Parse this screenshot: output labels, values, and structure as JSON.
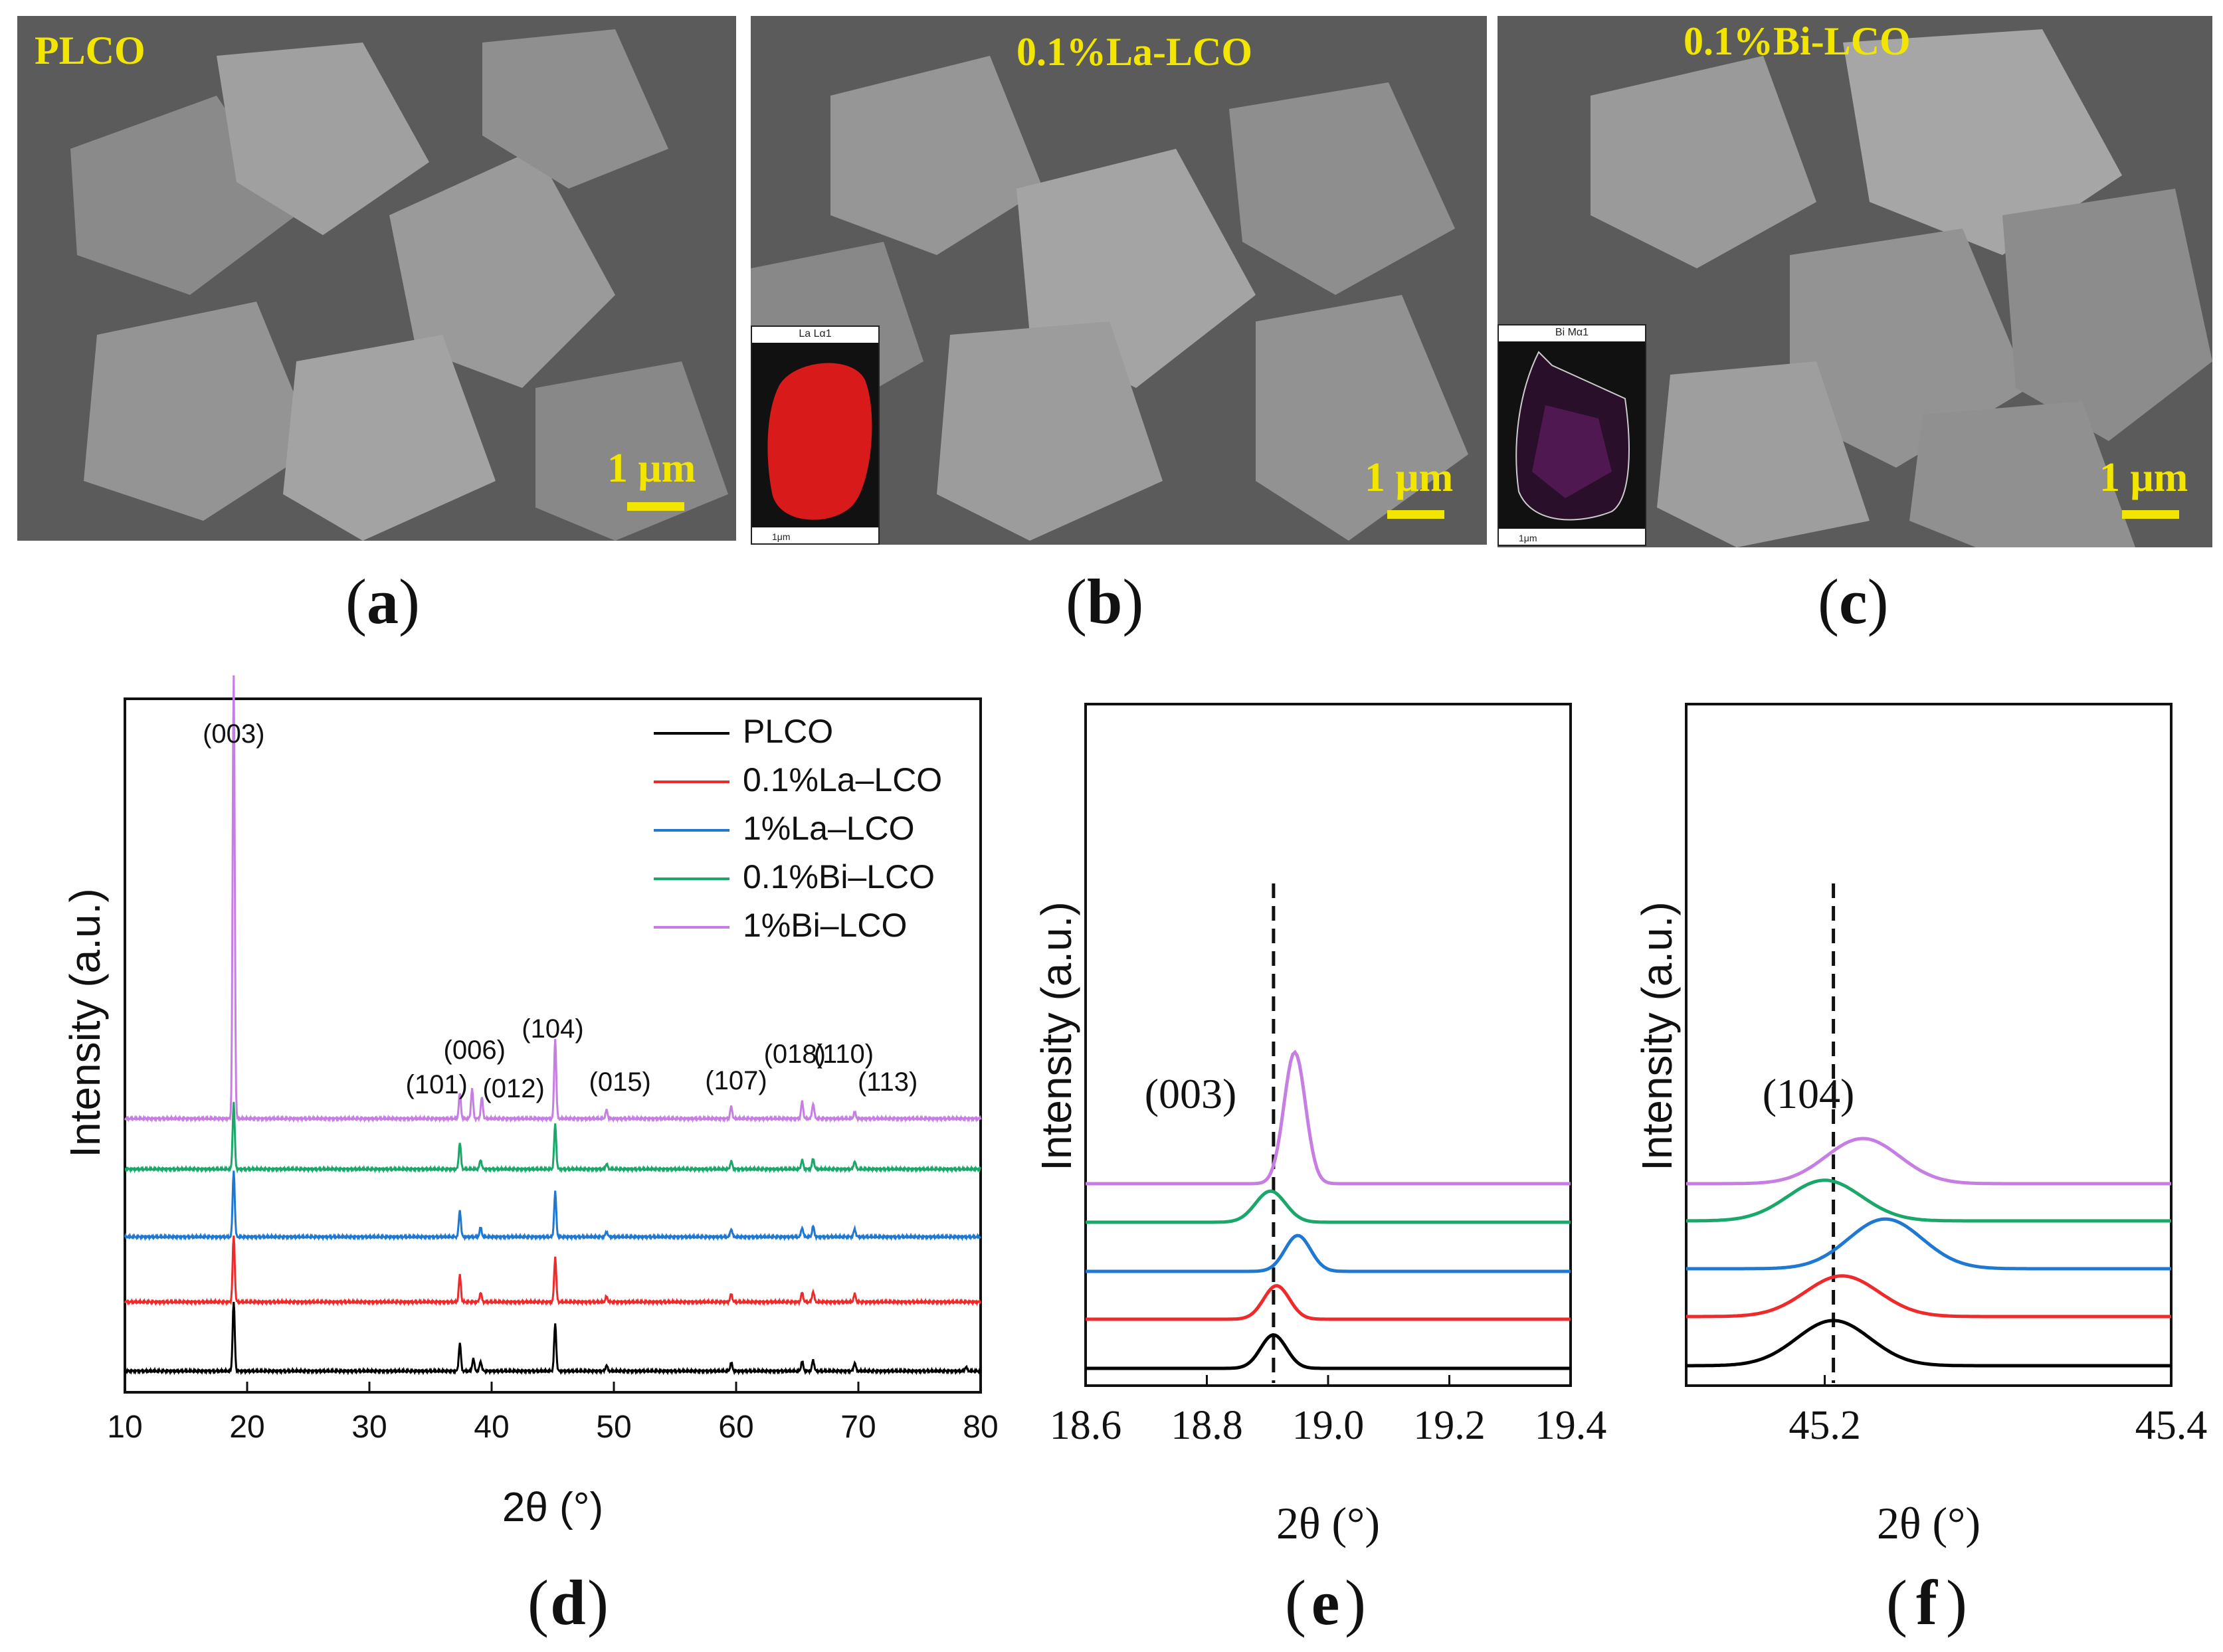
{
  "sem_panels": [
    {
      "id": "a",
      "title": "PLCO",
      "scale": "1 μm",
      "label": "a"
    },
    {
      "id": "b",
      "title": "0.1%La-LCO",
      "scale": "1 μm",
      "label": "b",
      "inset_title": "La Lα1",
      "inset_scale": "1μm",
      "inset_color": "#d81a1a"
    },
    {
      "id": "c",
      "title": "0.1%Bi-LCO",
      "scale": "1 μm",
      "label": "c",
      "inset_title": "Bi Mα1",
      "inset_scale": "1μm",
      "inset_color": "#8a1a8a"
    }
  ],
  "colors": {
    "PLCO": "#000000",
    "0.1%La–LCO": "#ee2a2a",
    "1%La–LCO": "#1f78d1",
    "0.1%Bi–LCO": "#1aa86a",
    "1%Bi–LCO": "#c77ee3"
  },
  "chart_data": [
    {
      "id": "d",
      "label": "d",
      "type": "line",
      "xlabel": "2θ (°)",
      "ylabel": "Intensity (a.u.)",
      "xlim": [
        10,
        80
      ],
      "xticks": [
        10,
        20,
        30,
        40,
        50,
        60,
        70,
        80
      ],
      "legend_position": "top-right",
      "series": [
        {
          "name": "PLCO",
          "offset": 0,
          "peaks": [
            [
              18.9,
              100
            ],
            [
              37.4,
              40
            ],
            [
              38.5,
              18
            ],
            [
              39.1,
              14
            ],
            [
              45.2,
              68
            ],
            [
              49.4,
              8
            ],
            [
              59.6,
              12
            ],
            [
              65.4,
              14
            ],
            [
              66.3,
              16
            ],
            [
              69.7,
              12
            ],
            [
              78.8,
              6
            ]
          ]
        },
        {
          "name": "0.1%La–LCO",
          "offset": 1,
          "peaks": [
            [
              18.9,
              100
            ],
            [
              37.4,
              40
            ],
            [
              39.1,
              14
            ],
            [
              45.2,
              68
            ],
            [
              49.4,
              8
            ],
            [
              59.6,
              12
            ],
            [
              65.4,
              14
            ],
            [
              66.3,
              16
            ],
            [
              69.7,
              12
            ]
          ]
        },
        {
          "name": "1%La–LCO",
          "offset": 2,
          "peaks": [
            [
              18.9,
              100
            ],
            [
              37.4,
              40
            ],
            [
              39.1,
              14
            ],
            [
              45.2,
              68
            ],
            [
              49.4,
              8
            ],
            [
              59.6,
              12
            ],
            [
              65.4,
              14
            ],
            [
              66.3,
              16
            ],
            [
              69.7,
              12
            ]
          ]
        },
        {
          "name": "0.1%Bi–LCO",
          "offset": 3,
          "peaks": [
            [
              18.9,
              100
            ],
            [
              37.4,
              40
            ],
            [
              39.1,
              14
            ],
            [
              45.2,
              68
            ],
            [
              49.4,
              8
            ],
            [
              59.6,
              12
            ],
            [
              65.4,
              14
            ],
            [
              66.3,
              16
            ],
            [
              69.7,
              12
            ]
          ]
        },
        {
          "name": "1%Bi–LCO",
          "offset": 4,
          "peaks": [
            [
              18.9,
              520
            ],
            [
              37.4,
              30
            ],
            [
              38.4,
              35
            ],
            [
              39.2,
              25
            ],
            [
              45.2,
              95
            ],
            [
              49.4,
              10
            ],
            [
              59.6,
              14
            ],
            [
              65.4,
              20
            ],
            [
              66.3,
              18
            ],
            [
              69.7,
              8
            ]
          ]
        }
      ],
      "annotations": [
        {
          "text": "(003)",
          "x": 18.9
        },
        {
          "text": "(101)",
          "x": 35.5
        },
        {
          "text": "(006)",
          "x": 38.6
        },
        {
          "text": "(012)",
          "x": 41.8
        },
        {
          "text": "(104)",
          "x": 45.0
        },
        {
          "text": "(015)",
          "x": 50.5
        },
        {
          "text": "(107)",
          "x": 60.0
        },
        {
          "text": "(018)",
          "x": 64.8
        },
        {
          "text": "(110)",
          "x": 68.8
        },
        {
          "text": "(113)",
          "x": 72.4
        }
      ]
    },
    {
      "id": "e",
      "label": "e",
      "type": "line",
      "xlabel": "2θ (°)",
      "ylabel": "Intensity (a.u.)",
      "xlim": [
        18.6,
        19.4
      ],
      "xticks": [
        "18.6",
        "18.8",
        "19.0",
        "19.2",
        "19.4"
      ],
      "ref_line_x": 18.91,
      "annotation": "(003)",
      "series": [
        {
          "name": "PLCO",
          "center": 18.91,
          "height": 1.4,
          "width": 0.03
        },
        {
          "name": "0.1%La–LCO",
          "center": 18.915,
          "height": 1.4,
          "width": 0.03
        },
        {
          "name": "1%La–LCO",
          "center": 18.95,
          "height": 1.5,
          "width": 0.03
        },
        {
          "name": "0.1%Bi–LCO",
          "center": 18.905,
          "height": 1.3,
          "width": 0.035
        },
        {
          "name": "1%Bi–LCO",
          "center": 18.945,
          "height": 5.5,
          "width": 0.025
        }
      ]
    },
    {
      "id": "f",
      "label": "f",
      "type": "line",
      "xlabel": "2θ (°)",
      "ylabel": "Intensity (a.u.)",
      "xlim": [
        45.12,
        45.4
      ],
      "xticks": [
        "45.2",
        "45.4"
      ],
      "ref_line_x": 45.205,
      "annotation": "(104)",
      "series": [
        {
          "name": "PLCO",
          "center": 45.205,
          "height": 1.0,
          "width": 0.03
        },
        {
          "name": "0.1%La–LCO",
          "center": 45.21,
          "height": 0.9,
          "width": 0.03
        },
        {
          "name": "1%La–LCO",
          "center": 45.235,
          "height": 1.1,
          "width": 0.03
        },
        {
          "name": "0.1%Bi–LCO",
          "center": 45.2,
          "height": 0.9,
          "width": 0.03
        },
        {
          "name": "1%Bi–LCO",
          "center": 45.222,
          "height": 1.0,
          "width": 0.03
        }
      ]
    }
  ]
}
